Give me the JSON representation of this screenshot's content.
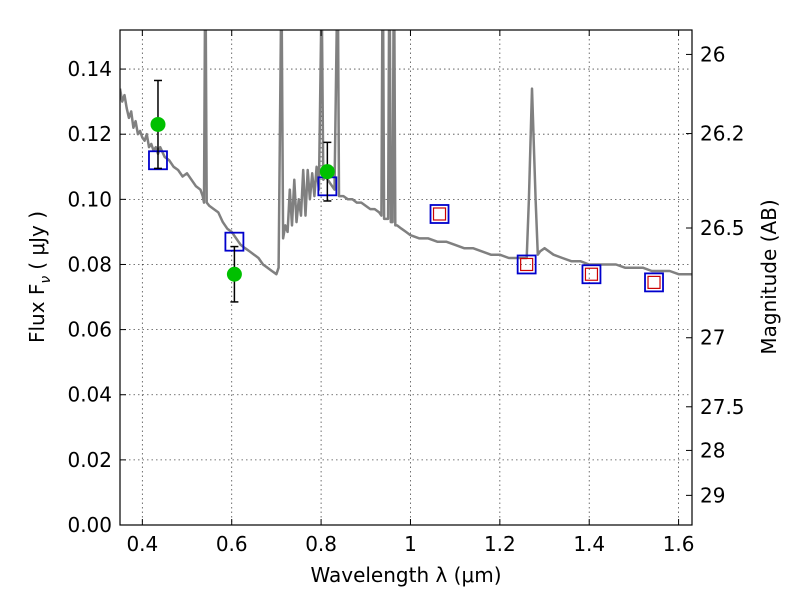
{
  "chart_data": {
    "type": "scatter",
    "title": "",
    "xlabel": "Wavelength  λ (μm)",
    "ylabel_left": "Flux  F",
    "ylabel_left_subscript": "ν",
    "ylabel_left_unit": "( μJy )",
    "ylabel_right": "Magnitude (AB)",
    "xlim": [
      0.35,
      1.63
    ],
    "ylim": [
      0.0,
      0.152
    ],
    "grid": true,
    "x_ticks": [
      {
        "value": 0.4,
        "label": "0.4"
      },
      {
        "value": 0.6,
        "label": "0.6"
      },
      {
        "value": 0.8,
        "label": "0.8"
      },
      {
        "value": 1.0,
        "label": "1"
      },
      {
        "value": 1.2,
        "label": "1.2"
      },
      {
        "value": 1.4,
        "label": "1.4"
      },
      {
        "value": 1.6,
        "label": "1.6"
      }
    ],
    "y_ticks": [
      {
        "value": 0.0,
        "label": "0.00"
      },
      {
        "value": 0.02,
        "label": "0.02"
      },
      {
        "value": 0.04,
        "label": "0.04"
      },
      {
        "value": 0.06,
        "label": "0.06"
      },
      {
        "value": 0.08,
        "label": "0.08"
      },
      {
        "value": 0.1,
        "label": "0.10"
      },
      {
        "value": 0.12,
        "label": "0.12"
      },
      {
        "value": 0.14,
        "label": "0.14"
      }
    ],
    "right_ticks": [
      {
        "flux": 0.1445,
        "label": "26"
      },
      {
        "flux": 0.1202,
        "label": "26.2"
      },
      {
        "flux": 0.0912,
        "label": "26.5"
      },
      {
        "flux": 0.0575,
        "label": "27"
      },
      {
        "flux": 0.0363,
        "label": "27.5"
      },
      {
        "flux": 0.0229,
        "label": "28"
      },
      {
        "flux": 0.0091,
        "label": "29"
      }
    ],
    "model_spectrum": {
      "color": "#808080",
      "points": [
        [
          0.35,
          0.134
        ],
        [
          0.355,
          0.13
        ],
        [
          0.36,
          0.132
        ],
        [
          0.365,
          0.128
        ],
        [
          0.37,
          0.125
        ],
        [
          0.375,
          0.127
        ],
        [
          0.38,
          0.122
        ],
        [
          0.385,
          0.124
        ],
        [
          0.39,
          0.12
        ],
        [
          0.395,
          0.121
        ],
        [
          0.4,
          0.119
        ],
        [
          0.405,
          0.118
        ],
        [
          0.41,
          0.12
        ],
        [
          0.415,
          0.116
        ],
        [
          0.42,
          0.117
        ],
        [
          0.425,
          0.115
        ],
        [
          0.43,
          0.116
        ],
        [
          0.435,
          0.114
        ],
        [
          0.44,
          0.116
        ],
        [
          0.45,
          0.113
        ],
        [
          0.46,
          0.112
        ],
        [
          0.47,
          0.11
        ],
        [
          0.48,
          0.109
        ],
        [
          0.49,
          0.107
        ],
        [
          0.5,
          0.108
        ],
        [
          0.51,
          0.106
        ],
        [
          0.52,
          0.104
        ],
        [
          0.53,
          0.103
        ],
        [
          0.535,
          0.101
        ],
        [
          0.538,
          0.099
        ],
        [
          0.54,
          0.152
        ],
        [
          0.542,
          0.152
        ],
        [
          0.544,
          0.099
        ],
        [
          0.55,
          0.098
        ],
        [
          0.56,
          0.097
        ],
        [
          0.57,
          0.096
        ],
        [
          0.58,
          0.093
        ],
        [
          0.59,
          0.091
        ],
        [
          0.6,
          0.09
        ],
        [
          0.61,
          0.088
        ],
        [
          0.62,
          0.086
        ],
        [
          0.63,
          0.085
        ],
        [
          0.64,
          0.084
        ],
        [
          0.65,
          0.083
        ],
        [
          0.66,
          0.082
        ],
        [
          0.67,
          0.08
        ],
        [
          0.68,
          0.079
        ],
        [
          0.69,
          0.078
        ],
        [
          0.7,
          0.077
        ],
        [
          0.705,
          0.079
        ],
        [
          0.71,
          0.152
        ],
        [
          0.712,
          0.152
        ],
        [
          0.715,
          0.088
        ],
        [
          0.72,
          0.092
        ],
        [
          0.725,
          0.09
        ],
        [
          0.73,
          0.103
        ],
        [
          0.735,
          0.092
        ],
        [
          0.74,
          0.106
        ],
        [
          0.745,
          0.093
        ],
        [
          0.75,
          0.1
        ],
        [
          0.755,
          0.095
        ],
        [
          0.76,
          0.109
        ],
        [
          0.765,
          0.095
        ],
        [
          0.77,
          0.109
        ],
        [
          0.775,
          0.1
        ],
        [
          0.78,
          0.108
        ],
        [
          0.785,
          0.101
        ],
        [
          0.79,
          0.11
        ],
        [
          0.795,
          0.103
        ],
        [
          0.8,
          0.152
        ],
        [
          0.802,
          0.152
        ],
        [
          0.805,
          0.106
        ],
        [
          0.81,
          0.107
        ],
        [
          0.82,
          0.105
        ],
        [
          0.83,
          0.103
        ],
        [
          0.835,
          0.152
        ],
        [
          0.838,
          0.152
        ],
        [
          0.84,
          0.101
        ],
        [
          0.85,
          0.101
        ],
        [
          0.86,
          0.1
        ],
        [
          0.87,
          0.1
        ],
        [
          0.88,
          0.099
        ],
        [
          0.89,
          0.099
        ],
        [
          0.9,
          0.098
        ],
        [
          0.91,
          0.097
        ],
        [
          0.92,
          0.097
        ],
        [
          0.93,
          0.096
        ],
        [
          0.935,
          0.095
        ],
        [
          0.937,
          0.152
        ],
        [
          0.939,
          0.152
        ],
        [
          0.941,
          0.094
        ],
        [
          0.945,
          0.094
        ],
        [
          0.95,
          0.094
        ],
        [
          0.952,
          0.152
        ],
        [
          0.954,
          0.152
        ],
        [
          0.956,
          0.093
        ],
        [
          0.96,
          0.093
        ],
        [
          0.962,
          0.152
        ],
        [
          0.964,
          0.152
        ],
        [
          0.966,
          0.092
        ],
        [
          0.97,
          0.092
        ],
        [
          0.98,
          0.091
        ],
        [
          0.99,
          0.09
        ],
        [
          1.0,
          0.089
        ],
        [
          1.02,
          0.088
        ],
        [
          1.04,
          0.088
        ],
        [
          1.06,
          0.087
        ],
        [
          1.08,
          0.087
        ],
        [
          1.1,
          0.086
        ],
        [
          1.12,
          0.085
        ],
        [
          1.14,
          0.085
        ],
        [
          1.16,
          0.084
        ],
        [
          1.18,
          0.083
        ],
        [
          1.2,
          0.083
        ],
        [
          1.22,
          0.082
        ],
        [
          1.24,
          0.082
        ],
        [
          1.26,
          0.082
        ],
        [
          1.265,
          0.1
        ],
        [
          1.272,
          0.134
        ],
        [
          1.28,
          0.1
        ],
        [
          1.285,
          0.083
        ],
        [
          1.29,
          0.084
        ],
        [
          1.3,
          0.085
        ],
        [
          1.32,
          0.083
        ],
        [
          1.34,
          0.082
        ],
        [
          1.36,
          0.081
        ],
        [
          1.38,
          0.081
        ],
        [
          1.4,
          0.08
        ],
        [
          1.42,
          0.08
        ],
        [
          1.44,
          0.08
        ],
        [
          1.46,
          0.08
        ],
        [
          1.48,
          0.079
        ],
        [
          1.5,
          0.079
        ],
        [
          1.52,
          0.079
        ],
        [
          1.54,
          0.078
        ],
        [
          1.56,
          0.078
        ],
        [
          1.58,
          0.078
        ],
        [
          1.6,
          0.077
        ],
        [
          1.62,
          0.077
        ],
        [
          1.63,
          0.077
        ]
      ]
    },
    "observed_points": {
      "color": "#00c000",
      "points": [
        {
          "x": 0.435,
          "y": 0.123,
          "err": 0.0135
        },
        {
          "x": 0.606,
          "y": 0.077,
          "err": 0.0085
        },
        {
          "x": 0.814,
          "y": 0.1085,
          "err": 0.009
        }
      ]
    },
    "model_photometry": {
      "color": "#0000cc",
      "points": [
        {
          "x": 0.435,
          "y": 0.112
        },
        {
          "x": 0.606,
          "y": 0.087
        },
        {
          "x": 0.814,
          "y": 0.104
        },
        {
          "x": 1.065,
          "y": 0.0955
        },
        {
          "x": 1.26,
          "y": 0.08
        },
        {
          "x": 1.405,
          "y": 0.077
        },
        {
          "x": 1.545,
          "y": 0.0745
        }
      ]
    },
    "upper_limits": {
      "color": "#cc0000",
      "points": [
        {
          "x": 1.065,
          "y": 0.0955
        },
        {
          "x": 1.26,
          "y": 0.08
        },
        {
          "x": 1.405,
          "y": 0.077
        },
        {
          "x": 1.545,
          "y": 0.0745
        }
      ]
    }
  }
}
